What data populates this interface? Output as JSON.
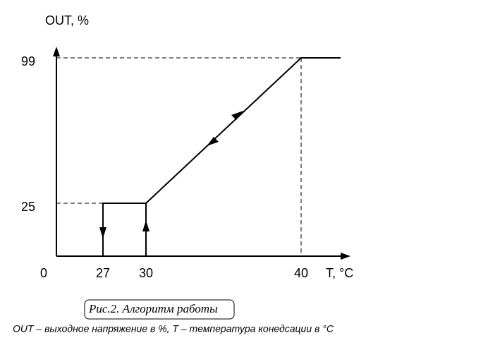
{
  "axes": {
    "y_label": "OUT, %",
    "x_label": "T, °C",
    "y_ticks": [
      99,
      25
    ],
    "x_ticks": [
      0,
      27,
      30,
      40
    ]
  },
  "caption": "Рис.2. Алгоритм работы",
  "note": "OUT – выходное напряжение в %, T – температура конедсации в °C"
}
